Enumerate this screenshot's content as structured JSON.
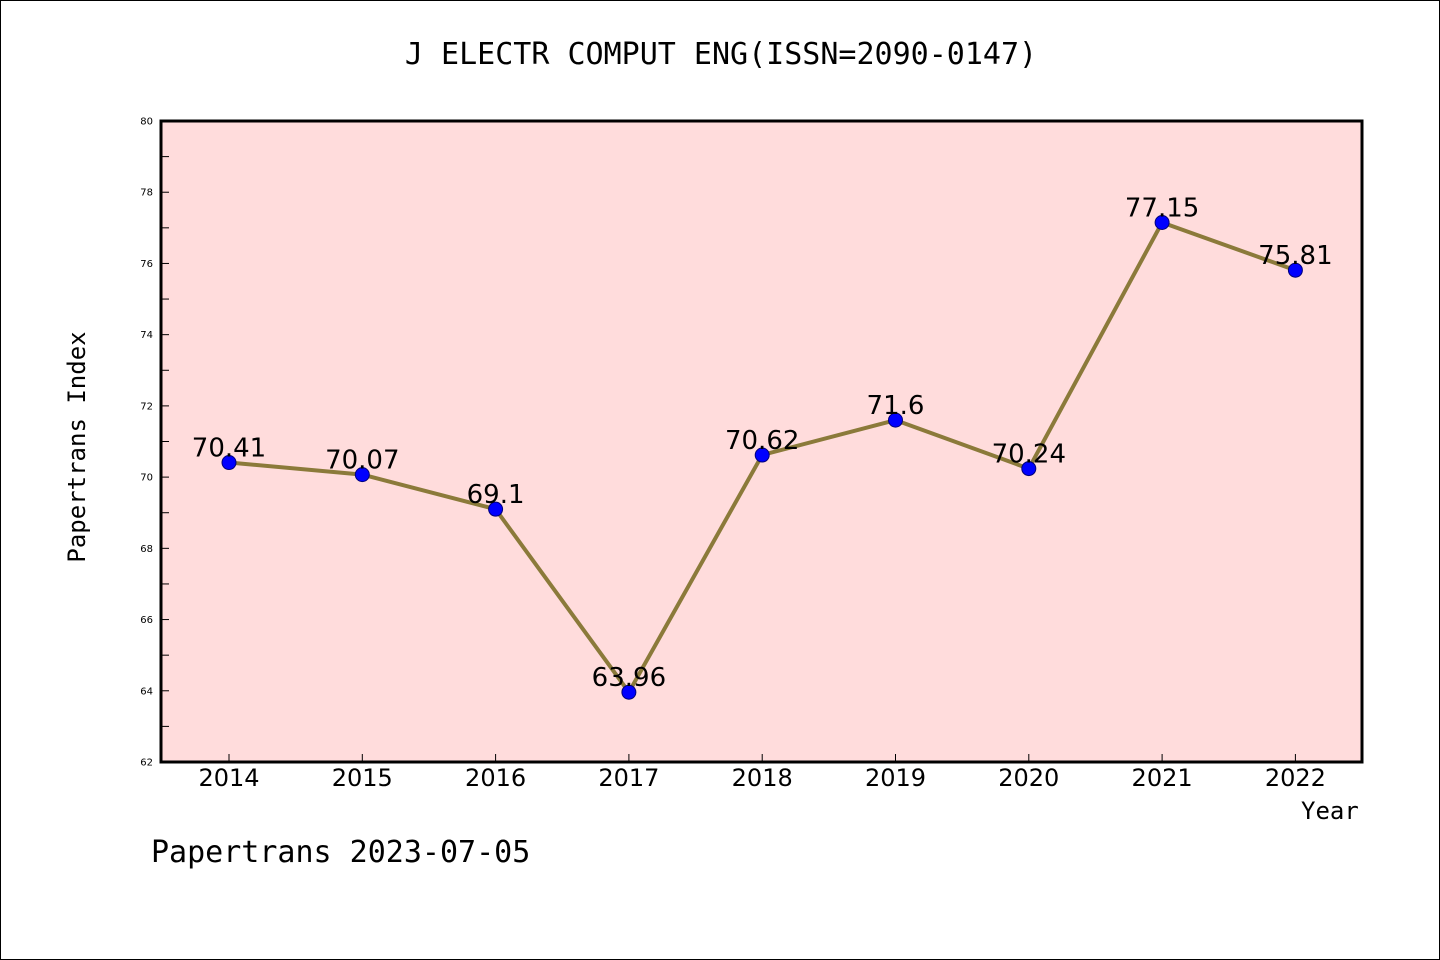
{
  "chart_data": {
    "type": "line",
    "title": "J ELECTR COMPUT ENG(ISSN=2090-0147)",
    "xlabel": "Year",
    "ylabel": "Papertrans Index",
    "categories": [
      "2014",
      "2015",
      "2016",
      "2017",
      "2018",
      "2019",
      "2020",
      "2021",
      "2022"
    ],
    "series": [
      {
        "values": [
          70.41,
          70.07,
          69.1,
          63.96,
          70.62,
          71.6,
          70.24,
          77.15,
          75.81
        ],
        "labels": [
          "70.41",
          "70.07",
          "69.1",
          "63.96",
          "70.62",
          "71.6",
          "70.24",
          "77.15",
          "75.81"
        ]
      }
    ],
    "ylim": [
      62,
      80
    ],
    "yticks": [
      62,
      64,
      66,
      68,
      70,
      72,
      74,
      76,
      78,
      80
    ],
    "grid": false,
    "colors": {
      "plot_background": "#ffdcdc",
      "line": "#8b7a3a",
      "marker": "#0000ff"
    }
  },
  "footer": {
    "note": "Papertrans 2023-07-05"
  }
}
